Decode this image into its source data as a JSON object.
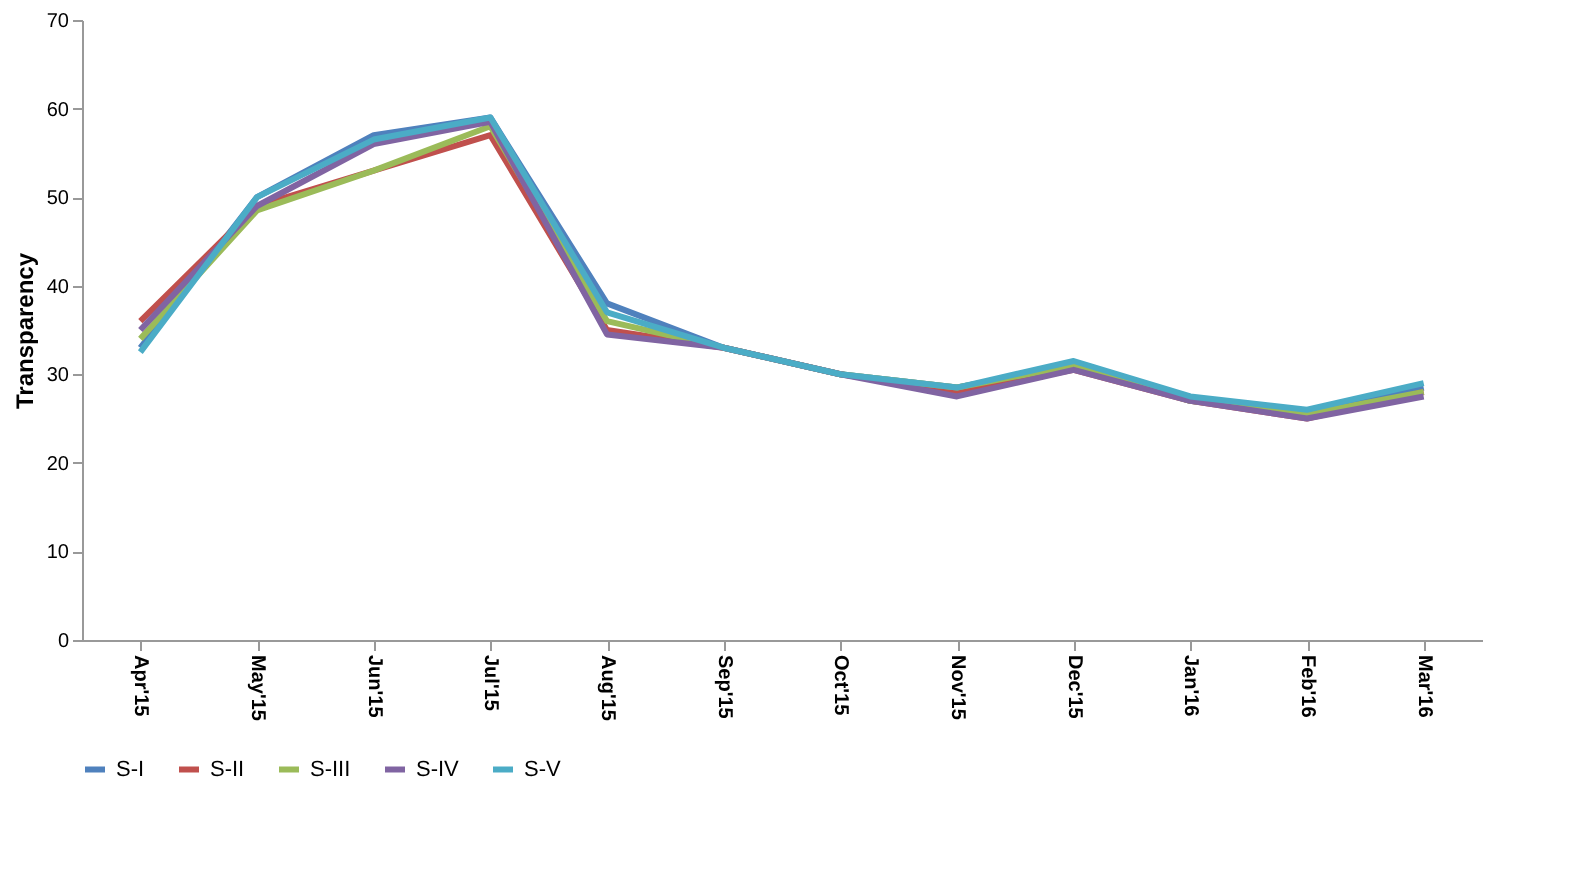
{
  "chart_data": {
    "type": "line",
    "ylabel": "Transparency",
    "categories": [
      "Apr'15",
      "May'15",
      "Jun'15",
      "Jul'15",
      "Aug'15",
      "Sep'15",
      "Oct'15",
      "Nov'15",
      "Dec'15",
      "Jan'16",
      "Feb'16",
      "Mar'16"
    ],
    "series": [
      {
        "name": "S-I",
        "color": "#4f81bd",
        "values": [
          33,
          50,
          57,
          59,
          38,
          33,
          30,
          28.5,
          31,
          27,
          25.5,
          28.5
        ]
      },
      {
        "name": "S-II",
        "color": "#c0504d",
        "values": [
          36,
          49,
          53,
          57,
          35,
          33,
          30,
          28,
          30.5,
          27,
          25,
          28
        ]
      },
      {
        "name": "S-III",
        "color": "#9bbb59",
        "values": [
          34,
          48.5,
          53,
          58,
          36,
          33,
          30,
          28.5,
          31,
          27,
          25.5,
          28
        ]
      },
      {
        "name": "S-IV",
        "color": "#8064a2",
        "values": [
          35,
          49,
          56,
          58.5,
          34.5,
          33,
          30,
          27.5,
          30.5,
          27,
          25,
          27.5
        ]
      },
      {
        "name": "S-V",
        "color": "#4bacc6",
        "values": [
          32.5,
          50,
          56.5,
          59,
          37,
          33,
          30,
          28.5,
          31.5,
          27.5,
          26,
          29
        ]
      }
    ],
    "ylim": [
      0,
      70
    ],
    "yticks": [
      0,
      10,
      20,
      30,
      40,
      50,
      60,
      70
    ],
    "grid": false,
    "legend": "bottom",
    "marker": "none",
    "line_style": "solid"
  }
}
